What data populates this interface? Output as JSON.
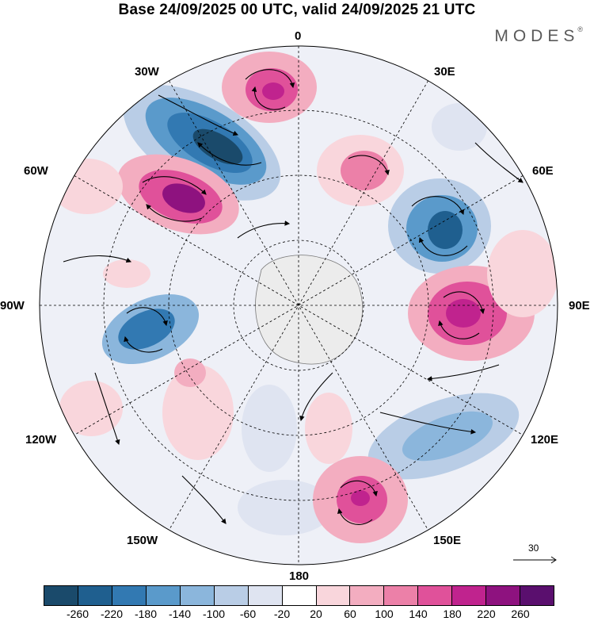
{
  "title": "Base 24/09/2025 00 UTC, valid 24/09/2025 21 UTC",
  "brand": {
    "name": "MODES",
    "mark": "®"
  },
  "longitude_labels": {
    "lon_0": "0",
    "lon_30e": "30E",
    "lon_60e": "60E",
    "lon_90e": "90E",
    "lon_120e": "120E",
    "lon_150e": "150E",
    "lon_180": "180",
    "lon_150w": "150W",
    "lon_120w": "120W",
    "lon_90w": "90W",
    "lon_60w": "60W",
    "lon_30w": "30W"
  },
  "reference_vector": {
    "value": "30"
  },
  "colorbar": {
    "colors": [
      "#1a4a6b",
      "#1f5f8f",
      "#3279b2",
      "#5a9acb",
      "#8bb6dc",
      "#b9cde6",
      "#dfe4f1",
      "#ffffff",
      "#f9d6dc",
      "#f3adc0",
      "#ec80a8",
      "#e0519a",
      "#c0238e",
      "#8e127f",
      "#5a0f6e"
    ],
    "tick_labels": [
      "-260",
      "-220",
      "-180",
      "-140",
      "-100",
      "-60",
      "-20",
      "20",
      "60",
      "100",
      "140",
      "180",
      "220",
      "260"
    ]
  }
}
